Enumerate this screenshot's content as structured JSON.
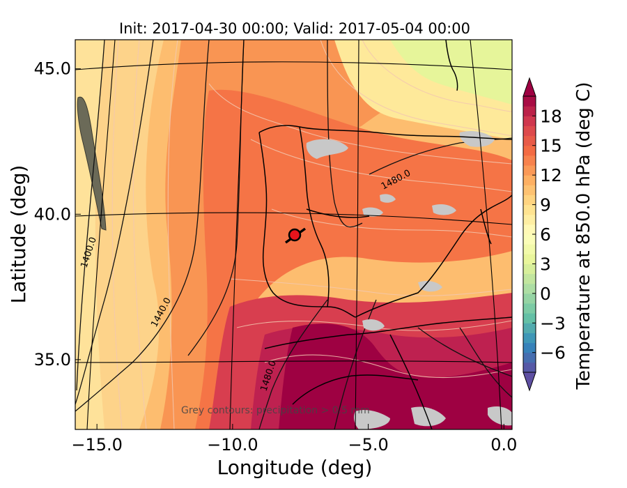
{
  "title": "Init: 2017-04-30 00:00; Valid: 2017-05-04 00:00",
  "xlabel": "Longitude (deg)",
  "ylabel": "Latitude (deg)",
  "xticks": [
    {
      "value": -15.0,
      "label": "−15.0"
    },
    {
      "value": -10.0,
      "label": "−10.0"
    },
    {
      "value": -5.0,
      "label": "−5.0"
    },
    {
      "value": 0.0,
      "label": "0.0"
    }
  ],
  "yticks": [
    {
      "value": 35.0,
      "label": "35.0"
    },
    {
      "value": 40.0,
      "label": "40.0"
    },
    {
      "value": 45.0,
      "label": "45.0"
    }
  ],
  "xlim": [
    -15.8,
    0.3
  ],
  "ylim": [
    32.6,
    46.0
  ],
  "colorbar": {
    "label": "Temperature at 850.0 hPa (deg C)",
    "range": [
      -8,
      20
    ],
    "extend": "both",
    "ticks": [
      {
        "value": -6,
        "label": "−6"
      },
      {
        "value": -3,
        "label": "−3"
      },
      {
        "value": 0,
        "label": "0"
      },
      {
        "value": 3,
        "label": "3"
      },
      {
        "value": 6,
        "label": "6"
      },
      {
        "value": 9,
        "label": "9"
      },
      {
        "value": 12,
        "label": "12"
      },
      {
        "value": 15,
        "label": "15"
      },
      {
        "value": 18,
        "label": "18"
      }
    ],
    "colormap": "Spectral_r"
  },
  "geopotential_labels": [
    {
      "text": "1400.0"
    },
    {
      "text": "1440.0"
    },
    {
      "text": "1480.0"
    },
    {
      "text": "1480.0"
    }
  ],
  "annotation": "Grey contours: precipitation > 0.5 mm",
  "marker": {
    "lon": -7.7,
    "lat": 39.4,
    "color": "#e8141c"
  },
  "colors": {
    "coastline": "#000000",
    "contour_dark": "#111111",
    "contour_light": "#f3c8b0",
    "precip": "#c8c8c8"
  }
}
